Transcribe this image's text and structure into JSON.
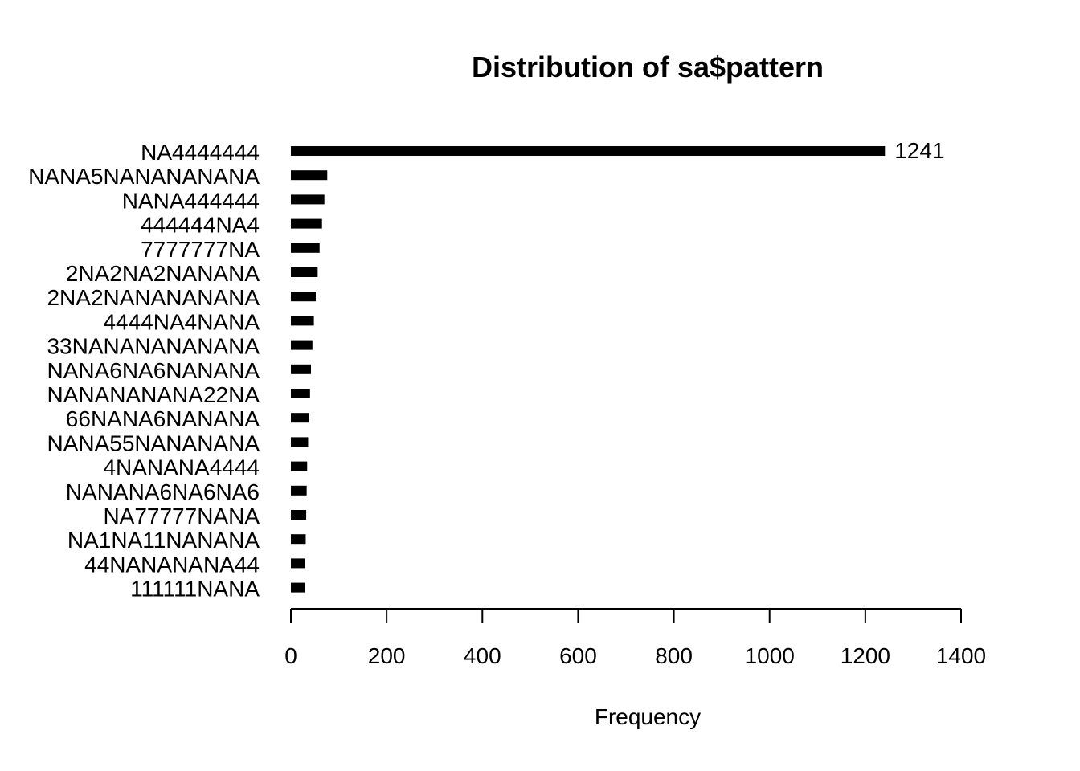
{
  "chart_data": {
    "type": "bar",
    "orientation": "horizontal",
    "title": "Distribution of sa$pattern",
    "xlabel": "Frequency",
    "ylabel": "",
    "xlim": [
      0,
      1400
    ],
    "xticks": [
      "0",
      "200",
      "400",
      "600",
      "800",
      "1000",
      "1200",
      "1400"
    ],
    "categories": [
      "NA4444444",
      "NANA5NANANANANA",
      "NANA444444",
      "444444NA4",
      "7777777NA",
      "2NA2NA2NANANA",
      "2NA2NANANANANA",
      "4444NA4NANA",
      "33NANANANANANA",
      "NANA6NA6NANANA",
      "NANANANANA22NA",
      "66NANA6NANANA",
      "NANA55NANANANA",
      "4NANANA4444",
      "NANANA6NA6NA6",
      "NA77777NANA",
      "NA1NA11NANANA",
      "44NANANANA44",
      "111111NANA"
    ],
    "values": [
      1241,
      76,
      70,
      65,
      60,
      56,
      52,
      48,
      45,
      42,
      40,
      38,
      36,
      34,
      33,
      32,
      31,
      30,
      29
    ],
    "value_labels": [
      "1241",
      "",
      "",
      "",
      "",
      "",
      "",
      "",
      "",
      "",
      "",
      "",
      "",
      "",
      "",
      "",
      "",
      "",
      ""
    ],
    "grid": false,
    "legend": "none"
  }
}
